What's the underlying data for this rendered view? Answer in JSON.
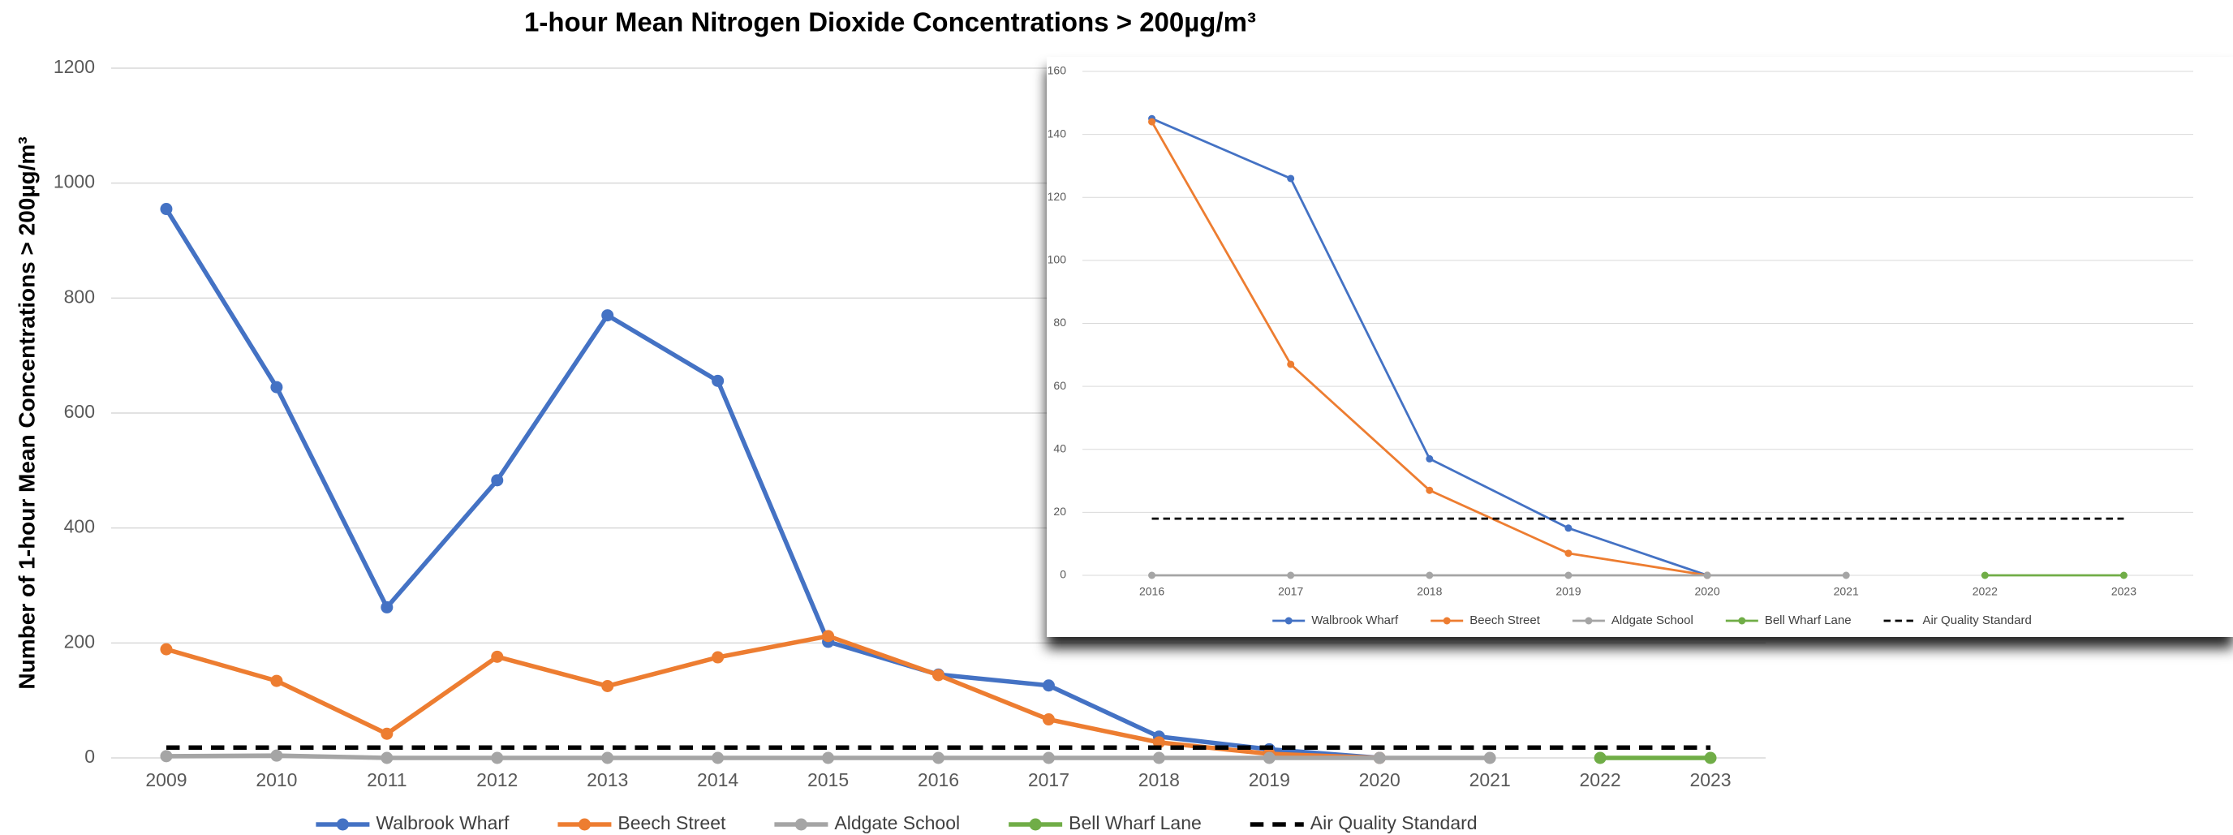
{
  "chart_data": [
    {
      "type": "line",
      "title": "1-hour Mean Nitrogen Dioxide Concentrations > 200µg/m³",
      "y_label": "Number of 1-hour Mean Concentrations > 200µg/m³",
      "categories": [
        "2009",
        "2010",
        "2011",
        "2012",
        "2013",
        "2014",
        "2015",
        "2016",
        "2017",
        "2018",
        "2019",
        "2020",
        "2021",
        "2022",
        "2023"
      ],
      "ylim": [
        0,
        1200
      ],
      "yticks": [
        0,
        200,
        400,
        600,
        800,
        1000,
        1200
      ],
      "grid": true,
      "legend": "bottom",
      "series": [
        {
          "name": "Walbrook Wharf",
          "color": "#4472c4",
          "values": [
            955,
            645,
            262,
            483,
            770,
            656,
            202,
            145,
            126,
            37,
            15,
            0,
            null,
            null,
            null
          ]
        },
        {
          "name": "Beech Street",
          "color": "#ed7d31",
          "values": [
            189,
            134,
            42,
            176,
            125,
            175,
            212,
            144,
            67,
            27,
            7,
            0,
            null,
            null,
            null
          ]
        },
        {
          "name": "Aldgate School",
          "color": "#a5a5a5",
          "values": [
            3,
            4,
            0,
            0,
            0,
            0,
            0,
            0,
            0,
            0,
            0,
            0,
            0,
            null,
            null
          ]
        },
        {
          "name": "Bell Wharf Lane",
          "color": "#70ad47",
          "values": [
            null,
            null,
            null,
            null,
            null,
            null,
            null,
            null,
            null,
            null,
            null,
            null,
            null,
            0,
            0
          ]
        },
        {
          "name": "Air Quality Standard",
          "color": "#000000",
          "dashed": true,
          "markers": false,
          "values": [
            18,
            18,
            18,
            18,
            18,
            18,
            18,
            18,
            18,
            18,
            18,
            18,
            18,
            18,
            18
          ]
        }
      ]
    },
    {
      "type": "line",
      "categories": [
        "2016",
        "2017",
        "2018",
        "2019",
        "2020",
        "2021",
        "2022",
        "2023"
      ],
      "ylim": [
        0,
        160
      ],
      "yticks": [
        0,
        20,
        40,
        60,
        80,
        100,
        120,
        140,
        160
      ],
      "grid": true,
      "legend": "bottom",
      "series": [
        {
          "name": "Walbrook Wharf",
          "color": "#4472c4",
          "values": [
            145,
            126,
            37,
            15,
            0,
            null,
            null,
            null
          ]
        },
        {
          "name": "Beech Street",
          "color": "#ed7d31",
          "values": [
            144,
            67,
            27,
            7,
            0,
            null,
            null,
            null
          ]
        },
        {
          "name": "Aldgate School",
          "color": "#a5a5a5",
          "values": [
            0,
            0,
            0,
            0,
            0,
            0,
            null,
            null
          ]
        },
        {
          "name": "Bell Wharf Lane",
          "color": "#70ad47",
          "values": [
            null,
            null,
            null,
            null,
            null,
            null,
            0,
            0
          ]
        },
        {
          "name": "Air Quality Standard",
          "color": "#000000",
          "dashed": true,
          "markers": false,
          "values": [
            18,
            18,
            18,
            18,
            18,
            18,
            18,
            18
          ]
        }
      ]
    }
  ]
}
